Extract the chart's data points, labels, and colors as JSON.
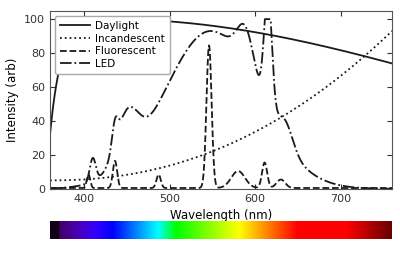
{
  "xlabel": "Wavelength (nm)",
  "ylabel": "Intensity (arb)",
  "xlim": [
    360,
    760
  ],
  "ylim": [
    0,
    105
  ],
  "yticks": [
    0,
    20,
    40,
    60,
    80,
    100
  ],
  "xticks": [
    400,
    500,
    600,
    700
  ],
  "legend_labels": [
    "Daylight",
    "Incandescent",
    "Fluorescent",
    "LED"
  ],
  "line_styles": [
    "-",
    ":",
    "--",
    "-."
  ],
  "line_color": "#1a1a1a",
  "line_width": 1.3
}
